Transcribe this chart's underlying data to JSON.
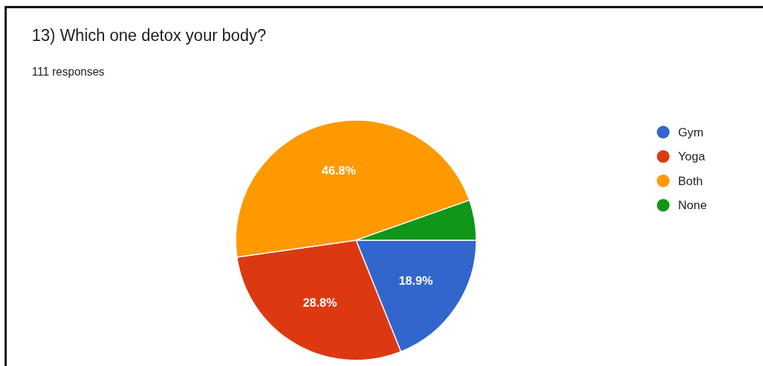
{
  "chart_data": {
    "type": "pie",
    "title": "13)  Which one detox your body?",
    "subtitle": "111 responses",
    "categories": [
      "Gym",
      "Yoga",
      "Both",
      "None"
    ],
    "values": [
      18.9,
      28.8,
      46.8,
      5.4
    ],
    "colors": [
      "#3366cc",
      "#dc3912",
      "#ff9900",
      "#109618"
    ],
    "value_labels": [
      "18.9%",
      "28.8%",
      "46.8%",
      null
    ],
    "legend": "right"
  }
}
